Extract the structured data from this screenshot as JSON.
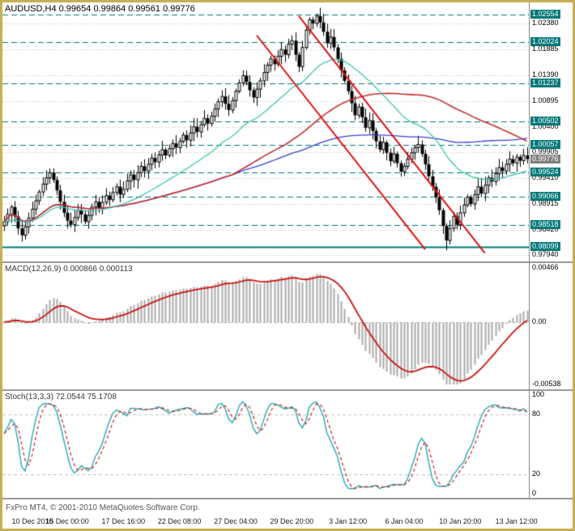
{
  "labels": {
    "chart": "AUDUSD,H4 0.99654 0.99864 0.99561 0.99776"
  },
  "footer": {
    "credit": "FxPro MT4, © 2001-2010 MetaQuotes Software Corp."
  },
  "colors": {
    "frame": "#C9AE54",
    "background": "#FFFFFF",
    "grid": "#D6D6D6",
    "candle": "#000000",
    "level": "#007878",
    "level_label_bg": "#007878",
    "current_label_bg": "#808080",
    "separator": "#9A9A9A",
    "trendline": "#E01010"
  },
  "chart_data": [
    {
      "type": "candlestick",
      "title": "AUDUSD,H4",
      "symbol": "AUDUSD",
      "timeframe": "H4",
      "last_ohlc": {
        "open": 0.99654,
        "high": 0.99864,
        "low": 0.99561,
        "close": 0.99776
      },
      "ylim": [
        0.9788,
        1.0272
      ],
      "first_open": 0.985,
      "note": "closes estimated from pixels; opens = previous close; wick sizes approximated",
      "closes": [
        0.9858,
        0.9872,
        0.9886,
        0.9868,
        0.9845,
        0.9832,
        0.9848,
        0.9865,
        0.9882,
        0.9898,
        0.9915,
        0.993,
        0.9942,
        0.9952,
        0.9938,
        0.9918,
        0.9896,
        0.9875,
        0.986,
        0.9852,
        0.9866,
        0.988,
        0.9872,
        0.9858,
        0.987,
        0.9886,
        0.9896,
        0.9884,
        0.9895,
        0.9908,
        0.99,
        0.9914,
        0.9925,
        0.991,
        0.992,
        0.9936,
        0.9948,
        0.9938,
        0.9952,
        0.9964,
        0.9955,
        0.9968,
        0.998,
        0.9972,
        0.9986,
        0.9996,
        0.9985,
        0.9998,
        1.0008,
        1.0,
        1.0012,
        1.0024,
        1.0014,
        1.0028,
        1.004,
        1.003,
        1.0044,
        1.0056,
        1.0046,
        1.006,
        1.0074,
        1.0088,
        1.0098,
        1.0084,
        1.0072,
        1.009,
        1.0108,
        1.0124,
        1.0138,
        1.0126,
        1.011,
        1.0096,
        1.0112,
        1.0128,
        1.0144,
        1.0158,
        1.017,
        1.016,
        1.0175,
        1.0188,
        1.0178,
        1.0198,
        1.0205,
        1.0178,
        1.0155,
        1.0192,
        1.0225,
        1.0245,
        1.0238,
        1.0252,
        1.024,
        1.0222,
        1.02,
        1.0212,
        1.0192,
        1.017,
        1.0148,
        1.0128,
        1.0108,
        1.0085,
        1.0062,
        1.0078,
        1.0058,
        1.0038,
        1.0052,
        1.0032,
        1.0012,
        0.9996,
        1.001,
        0.999,
        0.9974,
        0.9988,
        0.997,
        0.9954,
        0.9964,
        0.9978,
        0.999,
        1.0,
        1.0006,
        0.9988,
        0.9968,
        0.9945,
        0.9925,
        0.9905,
        0.988,
        0.985,
        0.9822,
        0.9845,
        0.9868,
        0.9852,
        0.9875,
        0.989,
        0.9905,
        0.9892,
        0.991,
        0.9925,
        0.9912,
        0.9928,
        0.9942,
        0.9935,
        0.995,
        0.9962,
        0.9955,
        0.9968,
        0.9978,
        0.997,
        0.9982,
        0.9975,
        0.9985,
        0.9978
      ],
      "wick_overrides": {
        "5": {
          "low": 0.982
        },
        "13": {
          "high": 0.996
        },
        "87": {
          "high": 1.025
        },
        "89": {
          "high": 1.0257
        },
        "126": {
          "low": 0.9803
        }
      },
      "y_axis": {
        "plain_ticks": [
          "1.02380",
          "1.01885",
          "1.01390",
          "1.00895",
          "1.00400",
          "0.99905",
          "0.99410",
          "0.98915",
          "0.98420",
          "0.97940"
        ],
        "level_ticks": [
          "1.02554",
          "1.02024",
          "1.01237",
          "1.00502",
          "1.00057",
          "0.99524",
          "0.99066",
          "0.98518",
          "0.98099"
        ],
        "current": "0.99776",
        "solid_level": "0.98099"
      },
      "x_ticks": {
        "labels": [
          "10 Dec 2010",
          "15 Dec 00:00",
          "17 Dec 16:00",
          "22 Dec 08:00",
          "27 Dec 04:00",
          "29 Dec 20:00",
          "3 Jan 12:00",
          "6 Jan 04:00",
          "10 Jan 20:00",
          "13 Jan 12:00"
        ],
        "bars": [
          2,
          18,
          34,
          50,
          66,
          82,
          98,
          114,
          130,
          146
        ]
      },
      "moving_averages": [
        {
          "name": "slow-sma-blue",
          "type": "sma",
          "period": 130,
          "color": "#3344CC",
          "width": 1.3
        },
        {
          "name": "mid-sma-red",
          "type": "sma",
          "period": 66,
          "color": "#C03030",
          "width": 1.6
        },
        {
          "name": "fast-ema-turquoise",
          "type": "ema",
          "period": 30,
          "color": "#3FC4AE",
          "width": 1.3
        }
      ],
      "trendlines": [
        {
          "from": [
            72,
            1.0215
          ],
          "to": [
            120,
            0.9805
          ]
        },
        {
          "from": [
            84,
            1.0252
          ],
          "to": [
            137,
            0.9798
          ]
        }
      ]
    },
    {
      "type": "macd",
      "label": "MACD(12,26,9) 0.000866 0.000113",
      "params": {
        "fast": 12,
        "slow": 26,
        "signal": 9
      },
      "current": {
        "macd": 0.000866,
        "signal": 0.000113
      },
      "ylim": [
        -0.00538,
        0.00466
      ],
      "y_ticks": [
        {
          "label": "0.00466",
          "value": 0.00466
        },
        {
          "label": "0.00",
          "value": 0
        },
        {
          "label": "-0.00538",
          "value": -0.00538
        }
      ],
      "histogram_color": "#ABABAB",
      "signal_color": "#CC1515",
      "source": "computed from chart_data[0].closes"
    },
    {
      "type": "stochastic",
      "label": "Stoch(13,3,3) 72.0544 75.1708",
      "params": {
        "k": 13,
        "slowing": 3,
        "d": 3
      },
      "current": {
        "k": 72.0544,
        "d": 75.1708
      },
      "ylim": [
        0,
        100
      ],
      "y_ticks": [
        {
          "label": "100",
          "value": 100
        },
        {
          "label": "80",
          "value": 80
        },
        {
          "label": "20",
          "value": 20
        },
        {
          "label": "0",
          "value": 0
        }
      ],
      "dashed_levels": [
        80,
        20
      ],
      "k_color": "#25AAB5",
      "d_color": "#CC2020",
      "source": "computed from chart_data[0] candles"
    }
  ]
}
